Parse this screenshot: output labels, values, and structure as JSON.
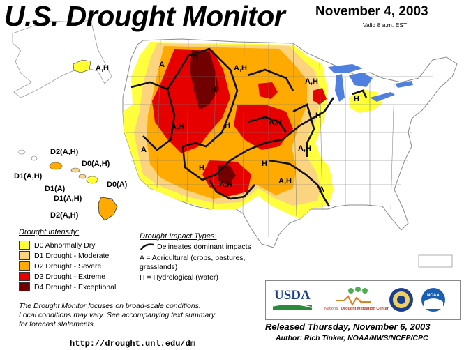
{
  "title": "U.S. Drought Monitor",
  "date": "November 4, 2003",
  "valid": "Valid 8 a.m. EST",
  "colors": {
    "D0": "#ffff33",
    "D1": "#fcd37f",
    "D2": "#ffaa00",
    "D3": "#e60000",
    "D4": "#730000",
    "water": "#4f7fdf"
  },
  "map_labels": {
    "alaska": "A,H",
    "hawaii_d2_top": "D2(A,H)",
    "hawaii_d0_ah": "D0(A,H)",
    "hawaii_d1_ah_left": "D1(A,H)",
    "hawaii_d1_a": "D1(A)",
    "hawaii_d1_ah": "D1(A,H)",
    "hawaii_d0_a": "D0(A)",
    "hawaii_d2_bottom": "D2(A,H)",
    "a_northwest": "A",
    "h_montana_west": "H",
    "ah_dakota": "A,H",
    "h_idaho": "H",
    "ah_great_lakes": "A,H",
    "h_michigan": "H",
    "ah_great_basin": "A,H",
    "h_wyoming": "H",
    "ah_plains": "A,H",
    "h_missouri": "H",
    "a_california": "A",
    "h_southwest": "H",
    "ah_illinois": "A,H",
    "h_kansas": "H",
    "ah_new_mexico": "A,H",
    "ah_texas": "A,H",
    "a_mississippi": "A"
  },
  "legend": {
    "title": "Drought Intensity:",
    "items": [
      {
        "label": "D0 Abnormally Dry",
        "color": "#ffff33"
      },
      {
        "label": "D1 Drought - Moderate",
        "color": "#fcd37f"
      },
      {
        "label": "D2 Drought - Severe",
        "color": "#ffaa00"
      },
      {
        "label": "D3 Drought - Extreme",
        "color": "#e60000"
      },
      {
        "label": "D4 Drought - Exceptional",
        "color": "#730000"
      }
    ]
  },
  "impact": {
    "title": "Drought Impact Types:",
    "line": "Delineates dominant impacts",
    "a1": "A = Agricultural (crops, pastures,",
    "a2": "grasslands)",
    "h": "H = Hydrological (water)"
  },
  "note": {
    "line1": "The Drought Monitor focuses on broad-scale conditions.",
    "line2": "Local conditions may vary.  See accompanying text summary",
    "line3": "for forecast statements."
  },
  "url": "http://drought.unl.edu/dm",
  "released": "Released Thursday, November 6, 2003",
  "author": "Author: Rich Tinker, NOAA/NWS/NCEP/CPC",
  "logos": {
    "usda": "USDA",
    "ndmc1": "National",
    "ndmc2": "Drought Mitigation Center",
    "noaa": "NOAA"
  }
}
